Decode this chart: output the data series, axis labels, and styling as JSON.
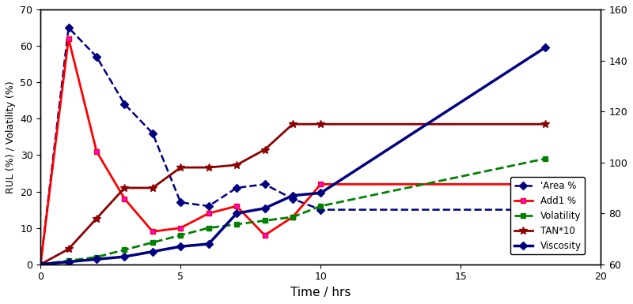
{
  "title": "",
  "xlabel": "Time / hrs",
  "ylabel_left": "RUL (%) / Volatility (%)",
  "ylabel_right": "",
  "xlim": [
    0,
    20
  ],
  "ylim_left": [
    0,
    70
  ],
  "ylim_right": [
    60,
    160
  ],
  "yticks_left": [
    0,
    10,
    20,
    30,
    40,
    50,
    60,
    70
  ],
  "yticks_right": [
    60,
    80,
    100,
    120,
    140,
    160
  ],
  "xticks": [
    0,
    5,
    10,
    15,
    20
  ],
  "area_x": [
    0,
    1,
    2,
    3,
    4,
    5,
    6,
    7,
    8,
    9,
    10,
    18
  ],
  "area_y": [
    0,
    65,
    57,
    44,
    36,
    17,
    16,
    21,
    22,
    18,
    15,
    15
  ],
  "add1_x": [
    0,
    1,
    2,
    3,
    4,
    5,
    6,
    7,
    8,
    9,
    10,
    18
  ],
  "add1_y": [
    0,
    62,
    31,
    18,
    9,
    10,
    14,
    16,
    8,
    13,
    22,
    22
  ],
  "volatility_x": [
    0,
    1,
    2,
    3,
    4,
    5,
    6,
    7,
    8,
    9,
    10,
    18
  ],
  "volatility_y": [
    0,
    1,
    2,
    4,
    6,
    8,
    10,
    11,
    12,
    13,
    16,
    29
  ],
  "tan_x": [
    0,
    1,
    2,
    3,
    4,
    5,
    6,
    7,
    8,
    9,
    10,
    18
  ],
  "tan_y": [
    60,
    66,
    78,
    90,
    90,
    98,
    98,
    99,
    105,
    115,
    115,
    115
  ],
  "viscosity_x": [
    0,
    1,
    2,
    3,
    4,
    5,
    6,
    7,
    8,
    9,
    10,
    18
  ],
  "viscosity_y": [
    60,
    61,
    62,
    63,
    65,
    67,
    68,
    80,
    82,
    87,
    88,
    145
  ],
  "area_color": "#000080",
  "add1_color": "#FF0000",
  "volatility_color": "#008000",
  "tan_color": "#8B0000",
  "viscosity_color": "#000080",
  "legend_labels": [
    "'Area %",
    "Add1 %",
    "Volatility",
    "TAN*10",
    "Viscosity"
  ],
  "background_color": "#FFFFFF",
  "figsize": [
    8.0,
    3.85
  ],
  "dpi": 100
}
